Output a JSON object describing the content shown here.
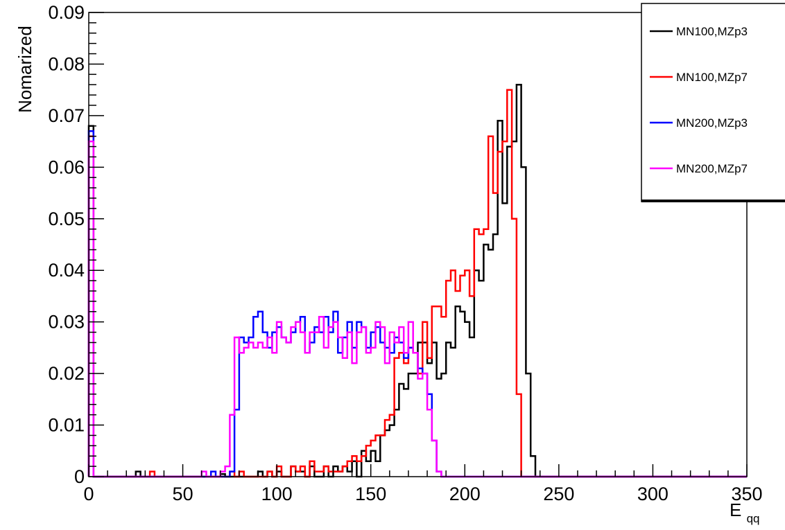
{
  "chart_data": {
    "type": "line",
    "title": "",
    "xlabel": "E",
    "xlabel_sub": "qq",
    "ylabel": "Nomarized",
    "xlim": [
      0,
      350
    ],
    "ylim": [
      0,
      0.09
    ],
    "x_ticks": [
      "0",
      "50",
      "100",
      "150",
      "200",
      "250",
      "300",
      "350"
    ],
    "y_ticks": [
      "0",
      "0.01",
      "0.02",
      "0.03",
      "0.04",
      "0.05",
      "0.06",
      "0.07",
      "0.08",
      "0.09"
    ],
    "grid": false,
    "legend_position": "top-right",
    "series": [
      {
        "name": "MN100,MZp3",
        "color": "#000000",
        "points": [
          [
            0,
            0.068
          ],
          [
            2.5,
            0
          ],
          [
            25,
            0.001
          ],
          [
            27.5,
            0
          ],
          [
            70,
            0.0005
          ],
          [
            72.5,
            0
          ],
          [
            90,
            0.001
          ],
          [
            92.5,
            0
          ],
          [
            95,
            0.001
          ],
          [
            97.5,
            0
          ],
          [
            100,
            0.001
          ],
          [
            102.5,
            0
          ],
          [
            107.5,
            0.002
          ],
          [
            110,
            0.001
          ],
          [
            112.5,
            0.001
          ],
          [
            115,
            0
          ],
          [
            117.5,
            0.002
          ],
          [
            120,
            0
          ],
          [
            125,
            0.002
          ],
          [
            127.5,
            0
          ],
          [
            130,
            0.002
          ],
          [
            132.5,
            0.001
          ],
          [
            135,
            0.002
          ],
          [
            137.5,
            0.001
          ],
          [
            140,
            0.003
          ],
          [
            142.5,
            0
          ],
          [
            145,
            0.005
          ],
          [
            147.5,
            0.003
          ],
          [
            150,
            0.005
          ],
          [
            152.5,
            0.003
          ],
          [
            155,
            0.008
          ],
          [
            157.5,
            0.009
          ],
          [
            160,
            0.01
          ],
          [
            162.5,
            0.013
          ],
          [
            165,
            0.018
          ],
          [
            167.5,
            0.017
          ],
          [
            170,
            0.02
          ],
          [
            172.5,
            0.02
          ],
          [
            175,
            0.026
          ],
          [
            177.5,
            0.026
          ],
          [
            180,
            0.022
          ],
          [
            182.5,
            0.026
          ],
          [
            185,
            0.019
          ],
          [
            187.5,
            0.02
          ],
          [
            190,
            0.026
          ],
          [
            192.5,
            0.025
          ],
          [
            195,
            0.033
          ],
          [
            197.5,
            0.032
          ],
          [
            200,
            0.03
          ],
          [
            202.5,
            0.027
          ],
          [
            205,
            0.04
          ],
          [
            207.5,
            0.038
          ],
          [
            210,
            0.045
          ],
          [
            212.5,
            0.044
          ],
          [
            215,
            0.047
          ],
          [
            217.5,
            0.069
          ],
          [
            220,
            0.053
          ],
          [
            222.5,
            0.064
          ],
          [
            225,
            0.065
          ],
          [
            227.5,
            0.076
          ],
          [
            230,
            0.06
          ],
          [
            232.5,
            0.02
          ],
          [
            235,
            0.004
          ],
          [
            237.5,
            0
          ],
          [
            350,
            0
          ]
        ]
      },
      {
        "name": "MN100,MZp7",
        "color": "#ff0000",
        "points": [
          [
            0,
            0.066
          ],
          [
            2.5,
            0
          ],
          [
            32.5,
            0.001
          ],
          [
            35,
            0
          ],
          [
            75,
            0.001
          ],
          [
            77.5,
            0
          ],
          [
            80,
            0.001
          ],
          [
            82.5,
            0
          ],
          [
            95,
            0.001
          ],
          [
            97.5,
            0
          ],
          [
            100,
            0.002
          ],
          [
            102.5,
            0
          ],
          [
            107.5,
            0.002
          ],
          [
            110,
            0.001
          ],
          [
            112.5,
            0.002
          ],
          [
            115,
            0
          ],
          [
            117.5,
            0.003
          ],
          [
            120,
            0.001
          ],
          [
            125,
            0.002
          ],
          [
            127.5,
            0.001
          ],
          [
            135,
            0.002
          ],
          [
            137.5,
            0.003
          ],
          [
            140,
            0.004
          ],
          [
            142.5,
            0.003
          ],
          [
            145,
            0.004
          ],
          [
            147.5,
            0.006
          ],
          [
            150,
            0.007
          ],
          [
            152.5,
            0.008
          ],
          [
            155,
            0.008
          ],
          [
            157.5,
            0.011
          ],
          [
            160,
            0.012
          ],
          [
            162.5,
            0.023
          ],
          [
            165,
            0.024
          ],
          [
            167.5,
            0.022
          ],
          [
            170,
            0.025
          ],
          [
            172.5,
            0.024
          ],
          [
            175,
            0.02
          ],
          [
            177.5,
            0.03
          ],
          [
            180,
            0.023
          ],
          [
            182.5,
            0.033
          ],
          [
            185,
            0.033
          ],
          [
            187.5,
            0.031
          ],
          [
            190,
            0.038
          ],
          [
            192.5,
            0.04
          ],
          [
            195,
            0.036
          ],
          [
            197.5,
            0.039
          ],
          [
            200,
            0.04
          ],
          [
            202.5,
            0.035
          ],
          [
            205,
            0.048
          ],
          [
            207.5,
            0.047
          ],
          [
            210,
            0.048
          ],
          [
            212.5,
            0.066
          ],
          [
            215,
            0.055
          ],
          [
            217.5,
            0.063
          ],
          [
            220,
            0.065
          ],
          [
            222.5,
            0.075
          ],
          [
            225,
            0.05
          ],
          [
            227.5,
            0.016
          ],
          [
            230,
            0
          ],
          [
            350,
            0
          ]
        ]
      },
      {
        "name": "MN200,MZp3",
        "color": "#0000ff",
        "points": [
          [
            0,
            0.067
          ],
          [
            2.5,
            0
          ],
          [
            65,
            0.001
          ],
          [
            67.5,
            0
          ],
          [
            75,
            0.001
          ],
          [
            77.5,
            0.013
          ],
          [
            80,
            0.027
          ],
          [
            82.5,
            0.026
          ],
          [
            85,
            0.027
          ],
          [
            87.5,
            0.031
          ],
          [
            90,
            0.032
          ],
          [
            92.5,
            0.028
          ],
          [
            95,
            0.025
          ],
          [
            97.5,
            0.028
          ],
          [
            100,
            0.029
          ],
          [
            102.5,
            0.027
          ],
          [
            105,
            0.026
          ],
          [
            107.5,
            0.028
          ],
          [
            110,
            0.03
          ],
          [
            112.5,
            0.031
          ],
          [
            115,
            0.024
          ],
          [
            117.5,
            0.026
          ],
          [
            120,
            0.029
          ],
          [
            122.5,
            0.028
          ],
          [
            125,
            0.031
          ],
          [
            127.5,
            0.028
          ],
          [
            130,
            0.032
          ],
          [
            132.5,
            0.024
          ],
          [
            135,
            0.027
          ],
          [
            137.5,
            0.03
          ],
          [
            140,
            0.025
          ],
          [
            142.5,
            0.03
          ],
          [
            145,
            0.029
          ],
          [
            147.5,
            0.025
          ],
          [
            150,
            0.028
          ],
          [
            152.5,
            0.029
          ],
          [
            155,
            0.026
          ],
          [
            157.5,
            0.025
          ],
          [
            160,
            0.024
          ],
          [
            162.5,
            0.027
          ],
          [
            165,
            0.026
          ],
          [
            167.5,
            0.023
          ],
          [
            170,
            0.025
          ],
          [
            172.5,
            0.024
          ],
          [
            175,
            0.021
          ],
          [
            177.5,
            0.02
          ],
          [
            180,
            0.016
          ],
          [
            182.5,
            0.007
          ],
          [
            185,
            0.001
          ],
          [
            187.5,
            0
          ],
          [
            350,
            0
          ]
        ]
      },
      {
        "name": "MN200,MZp7",
        "color": "#ff00ff",
        "points": [
          [
            0,
            0.065
          ],
          [
            2.5,
            0
          ],
          [
            60,
            0.001
          ],
          [
            62.5,
            0
          ],
          [
            70,
            0.001
          ],
          [
            72.5,
            0.002
          ],
          [
            75,
            0.012
          ],
          [
            77.5,
            0.027
          ],
          [
            80,
            0.024
          ],
          [
            82.5,
            0.025
          ],
          [
            85,
            0.026
          ],
          [
            87.5,
            0.025
          ],
          [
            90,
            0.026
          ],
          [
            92.5,
            0.025
          ],
          [
            95,
            0.027
          ],
          [
            97.5,
            0.024
          ],
          [
            100,
            0.03
          ],
          [
            102.5,
            0.027
          ],
          [
            105,
            0.026
          ],
          [
            107.5,
            0.029
          ],
          [
            110,
            0.03
          ],
          [
            112.5,
            0.028
          ],
          [
            115,
            0.024
          ],
          [
            117.5,
            0.028
          ],
          [
            120,
            0.028
          ],
          [
            122.5,
            0.031
          ],
          [
            125,
            0.025
          ],
          [
            127.5,
            0.029
          ],
          [
            130,
            0.03
          ],
          [
            132.5,
            0.027
          ],
          [
            135,
            0.023
          ],
          [
            137.5,
            0.028
          ],
          [
            140,
            0.022
          ],
          [
            142.5,
            0.028
          ],
          [
            145,
            0.029
          ],
          [
            147.5,
            0.024
          ],
          [
            150,
            0.025
          ],
          [
            152.5,
            0.03
          ],
          [
            155,
            0.029
          ],
          [
            157.5,
            0.022
          ],
          [
            160,
            0.028
          ],
          [
            162.5,
            0.026
          ],
          [
            165,
            0.029
          ],
          [
            167.5,
            0.024
          ],
          [
            170,
            0.03
          ],
          [
            172.5,
            0.024
          ],
          [
            175,
            0.019
          ],
          [
            177.5,
            0.02
          ],
          [
            180,
            0.013
          ],
          [
            182.5,
            0.007
          ],
          [
            185,
            0.001
          ],
          [
            187.5,
            0
          ],
          [
            350,
            0
          ]
        ]
      }
    ]
  }
}
